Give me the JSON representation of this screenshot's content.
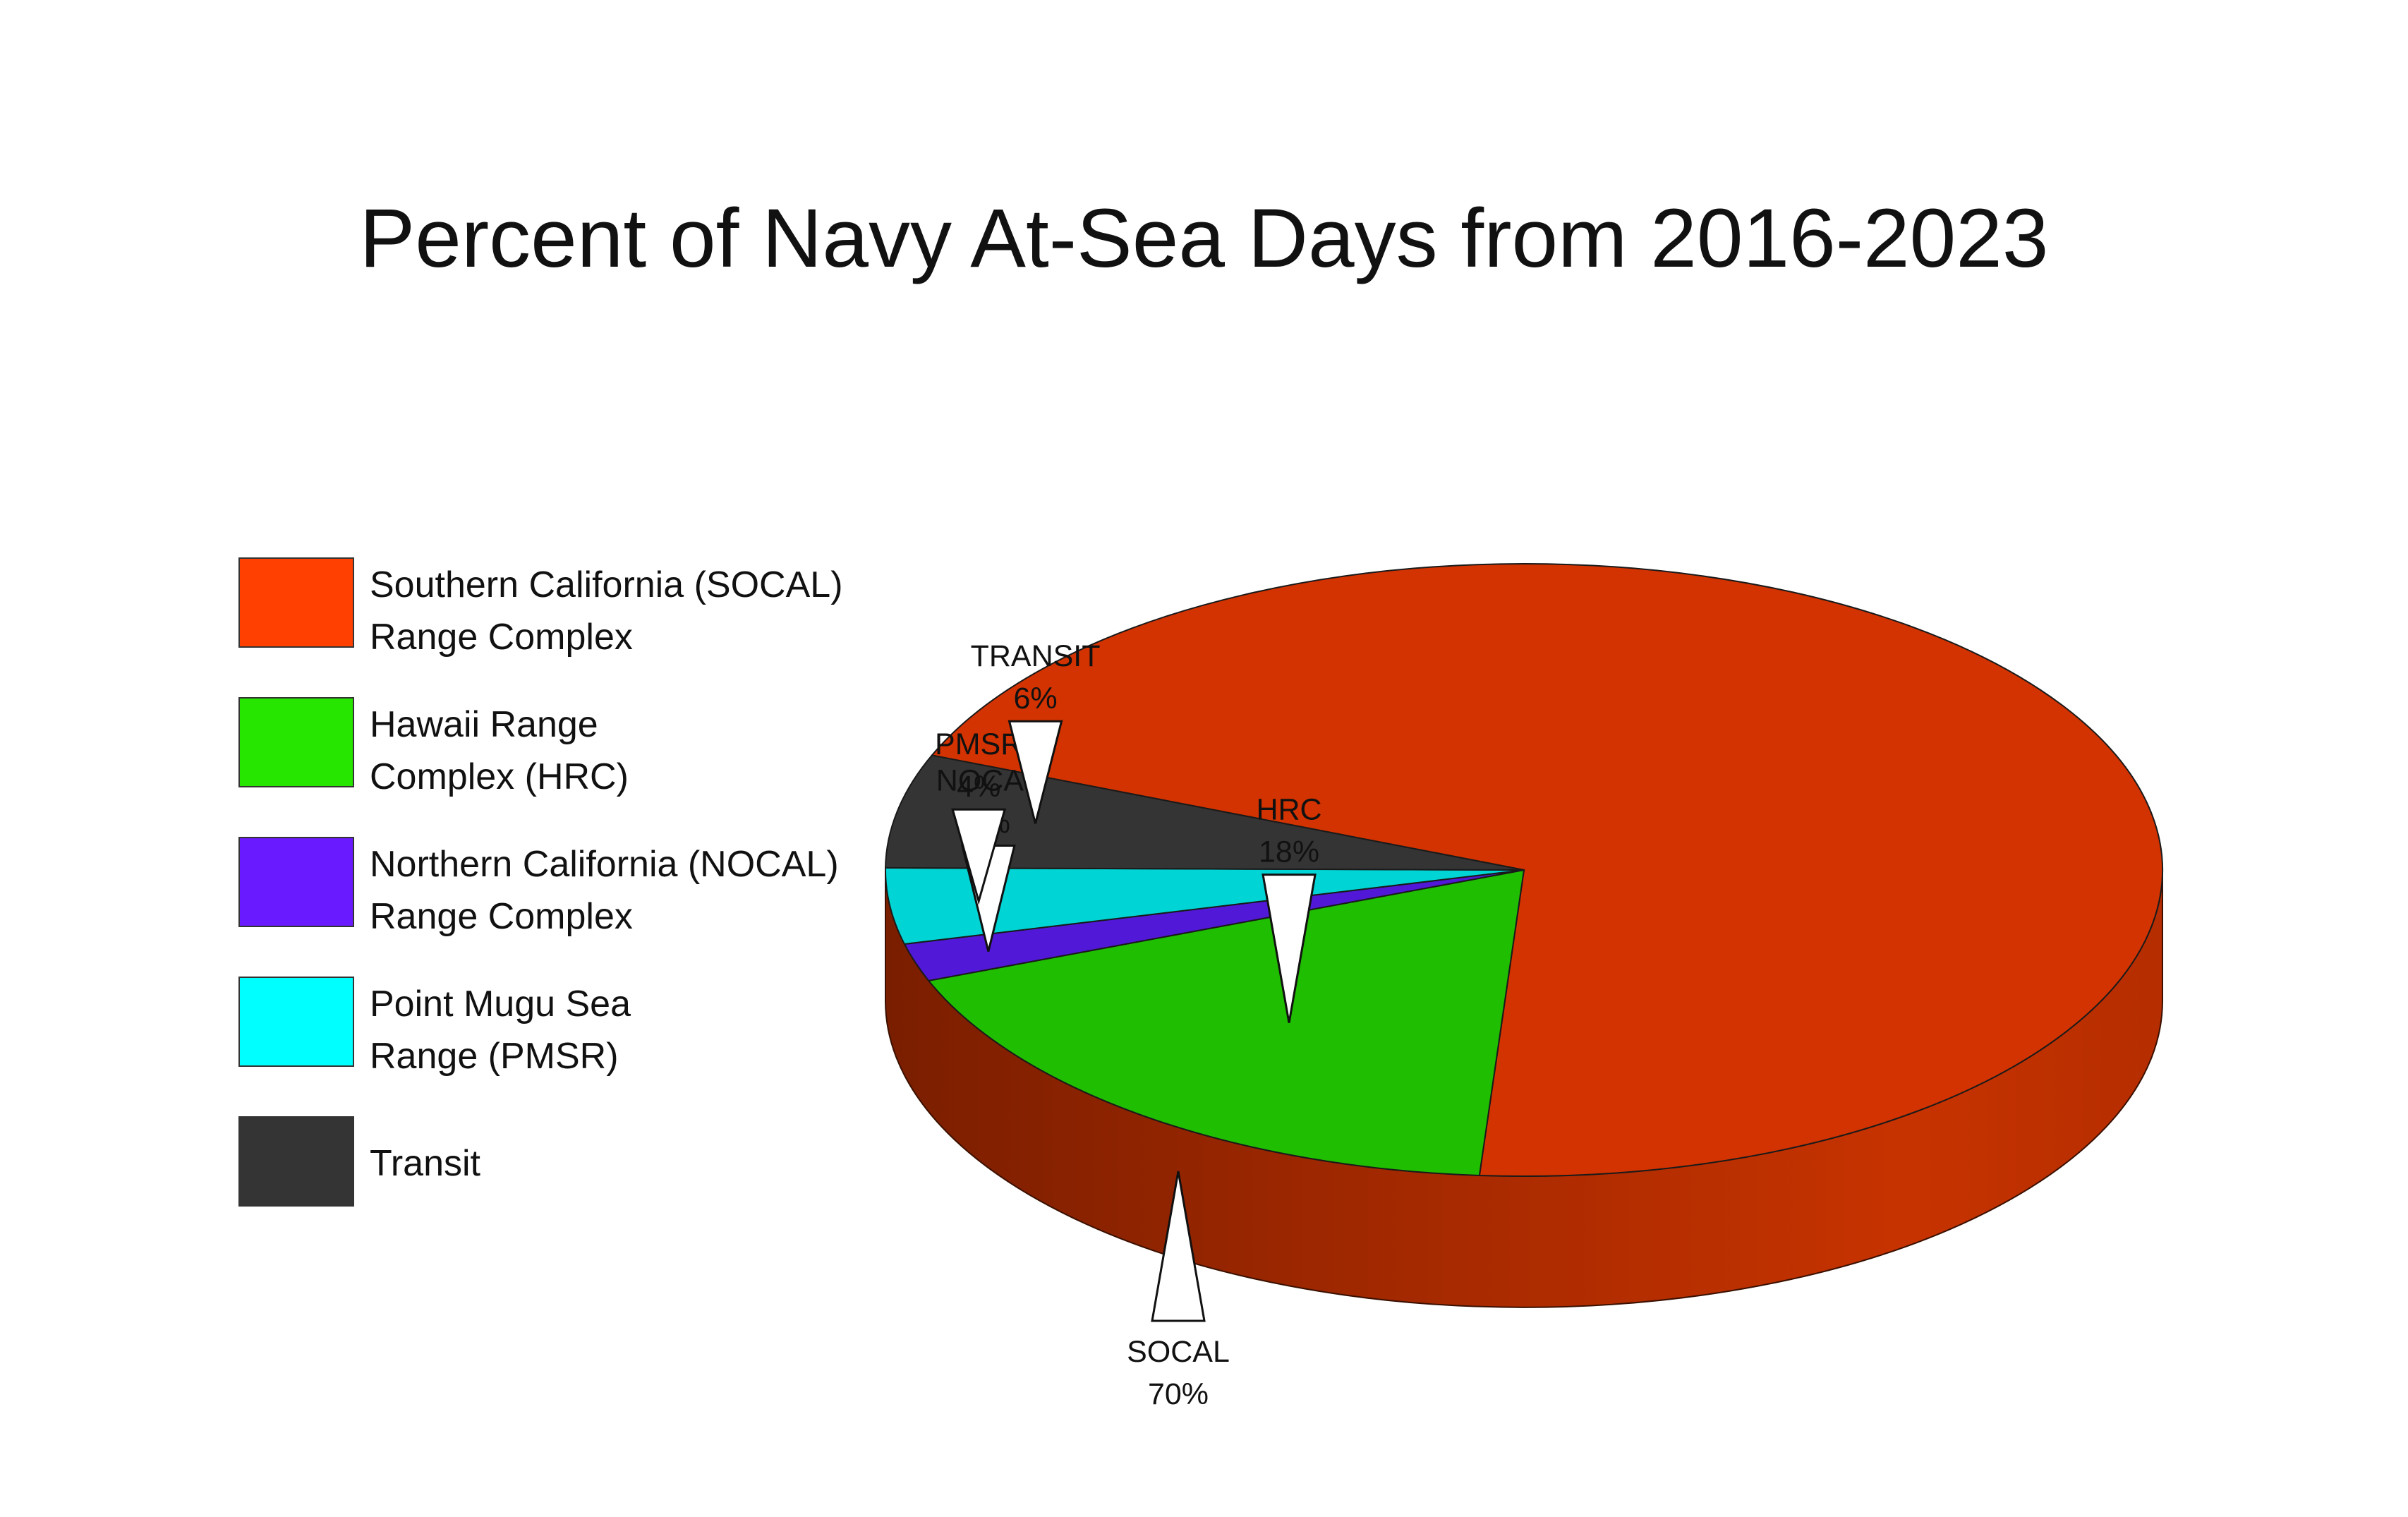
{
  "chart_data": {
    "type": "pie",
    "title": "Percent of Navy At-Sea Days from 2016-2023",
    "categories": [
      "SOCAL",
      "HRC",
      "NOCAL",
      "PMSR",
      "TRANSIT"
    ],
    "values": [
      70,
      18,
      2,
      4,
      6
    ],
    "value_labels": [
      "70%",
      "18%",
      "2%",
      "4%",
      "6%"
    ],
    "colors": [
      "#D23300",
      "#20BE00",
      "#5118D8",
      "#00D4D4",
      "#343434"
    ],
    "legend": [
      {
        "lines": [
          "Southern California (SOCAL)",
          "Range Complex"
        ],
        "color": "#FF4000"
      },
      {
        "lines": [
          "Hawaii Range",
          "Complex (HRC)"
        ],
        "color": "#26E600"
      },
      {
        "lines": [
          "Northern California (NOCAL)",
          "Range Complex"
        ],
        "color": "#6A1AFF"
      },
      {
        "lines": [
          "Point Mugu Sea",
          "Range (PMSR)"
        ],
        "color": "#00FFFF"
      },
      {
        "lines": [
          "Transit"
        ],
        "color": "#343434"
      }
    ],
    "legend_position": "left",
    "style": "3d-pie"
  }
}
